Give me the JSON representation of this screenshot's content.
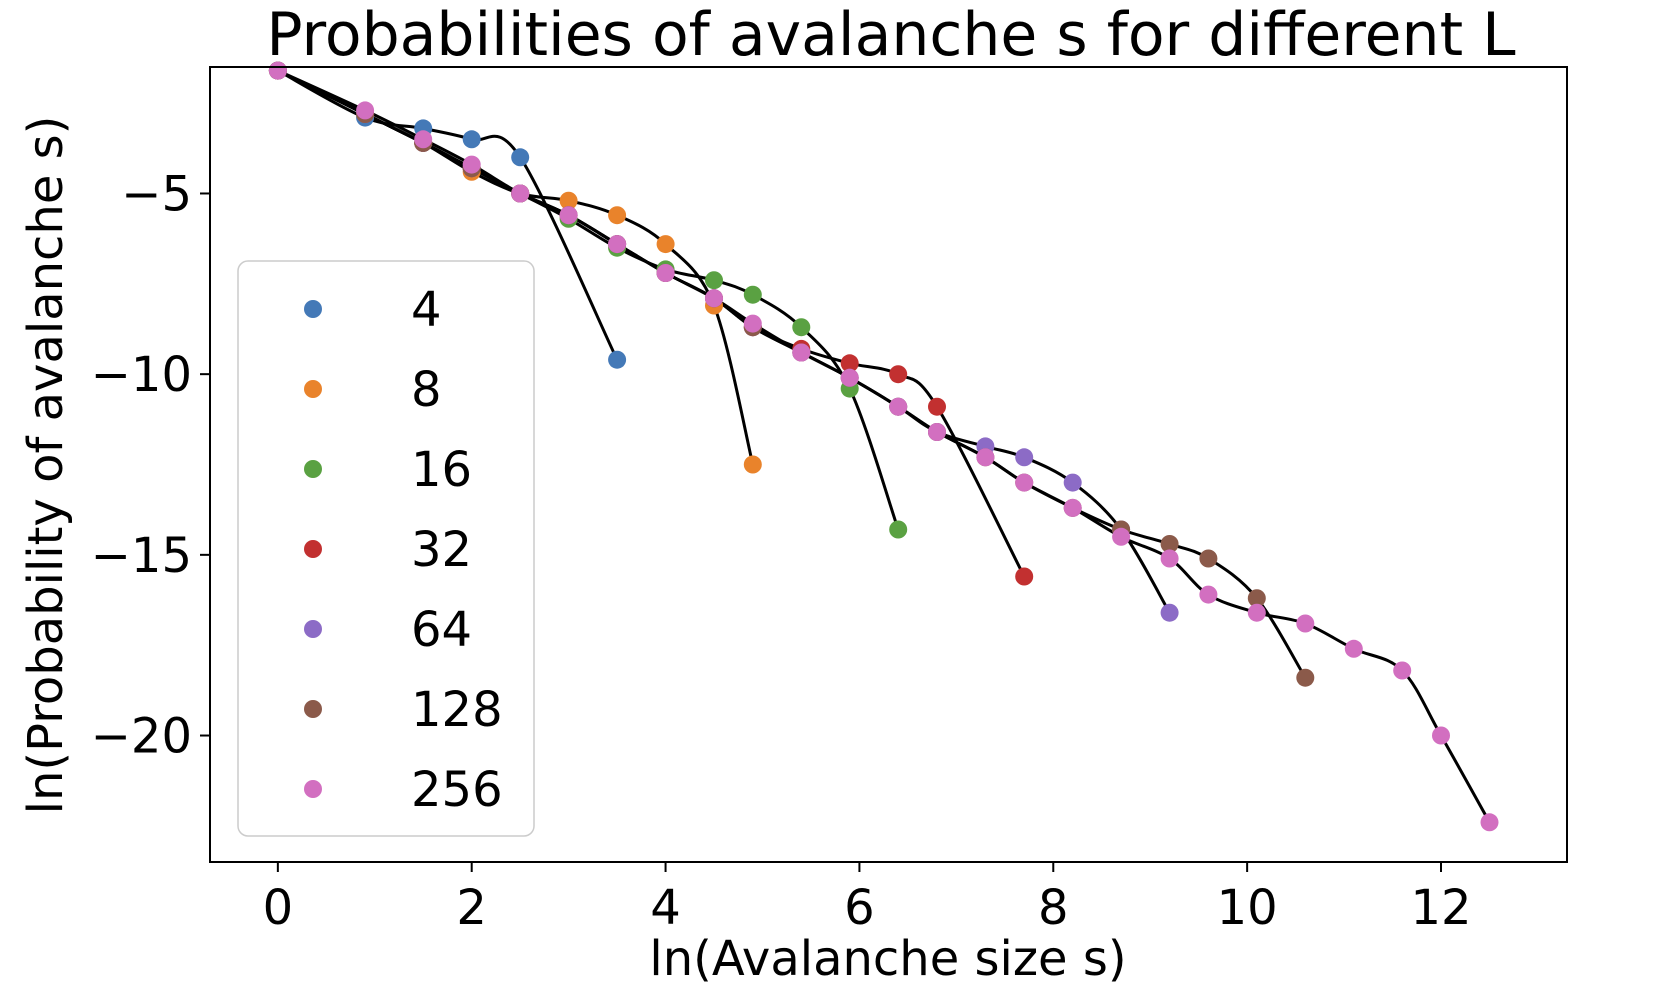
{
  "chart_data": {
    "type": "line",
    "title": "Probabilities of avalanche s for different L",
    "xlabel": "ln(Avalanche size s)",
    "ylabel": "ln(Probability of avalanche s)",
    "xlim": [
      -0.7,
      13.3
    ],
    "ylim": [
      -23.5,
      -1.5
    ],
    "xticks": [
      0,
      2,
      4,
      6,
      8,
      10,
      12
    ],
    "yticks": [
      -5,
      -10,
      -15,
      -20
    ],
    "xtick_labels": [
      "0",
      "2",
      "4",
      "6",
      "8",
      "10",
      "12"
    ],
    "ytick_labels": [
      "−5",
      "−10",
      "−15",
      "−20"
    ],
    "grid": false,
    "legend_position": "center-left",
    "line_color": "#000000",
    "series": [
      {
        "name": "4",
        "color": "#4479b7",
        "x": [
          0,
          0.9,
          1.5,
          2.0,
          2.5,
          3.5
        ],
        "y": [
          -1.6,
          -2.9,
          -3.2,
          -3.5,
          -4.0,
          -9.6
        ]
      },
      {
        "name": "8",
        "color": "#e9832b",
        "x": [
          0,
          0.9,
          1.5,
          2.0,
          2.5,
          3.0,
          3.5,
          4.0,
          4.5,
          4.9
        ],
        "y": [
          -1.6,
          -2.8,
          -3.6,
          -4.4,
          -5.0,
          -5.2,
          -5.6,
          -6.4,
          -8.1,
          -12.5
        ]
      },
      {
        "name": "16",
        "color": "#5aa142",
        "x": [
          0,
          0.9,
          1.5,
          2.0,
          2.5,
          3.0,
          3.5,
          4.0,
          4.5,
          4.9,
          5.4,
          5.9,
          6.4
        ],
        "y": [
          -1.6,
          -2.8,
          -3.6,
          -4.3,
          -5.0,
          -5.7,
          -6.5,
          -7.1,
          -7.4,
          -7.8,
          -8.7,
          -10.4,
          -14.3
        ]
      },
      {
        "name": "32",
        "color": "#c23030",
        "x": [
          0,
          0.9,
          1.5,
          2.0,
          2.5,
          3.0,
          3.5,
          4.0,
          4.5,
          4.9,
          5.4,
          5.9,
          6.4,
          6.8,
          7.7
        ],
        "y": [
          -1.6,
          -2.8,
          -3.6,
          -4.3,
          -5.0,
          -5.6,
          -6.4,
          -7.2,
          -7.9,
          -8.7,
          -9.3,
          -9.7,
          -10.0,
          -10.9,
          -15.6
        ]
      },
      {
        "name": "64",
        "color": "#8c6bc6",
        "x": [
          0,
          0.9,
          1.5,
          2.0,
          2.5,
          3.0,
          3.5,
          4.0,
          4.5,
          4.9,
          5.4,
          5.9,
          6.4,
          6.8,
          7.3,
          7.7,
          8.2,
          8.7,
          9.2
        ],
        "y": [
          -1.6,
          -2.8,
          -3.6,
          -4.3,
          -5.0,
          -5.6,
          -6.4,
          -7.2,
          -7.9,
          -8.7,
          -9.4,
          -10.1,
          -10.9,
          -11.6,
          -12.0,
          -12.3,
          -13.0,
          -14.3,
          -16.6
        ]
      },
      {
        "name": "128",
        "color": "#8b5a4a",
        "x": [
          0,
          0.9,
          1.5,
          2.0,
          2.5,
          3.0,
          3.5,
          4.0,
          4.5,
          4.9,
          5.4,
          5.9,
          6.4,
          6.8,
          7.3,
          7.7,
          8.2,
          8.7,
          9.2,
          9.6,
          10.1,
          10.6
        ],
        "y": [
          -1.6,
          -2.8,
          -3.6,
          -4.3,
          -5.0,
          -5.6,
          -6.4,
          -7.2,
          -7.9,
          -8.7,
          -9.4,
          -10.1,
          -10.9,
          -11.6,
          -12.3,
          -13.0,
          -13.7,
          -14.3,
          -14.7,
          -15.1,
          -16.2,
          -18.4
        ]
      },
      {
        "name": "256",
        "color": "#d26fc0",
        "x": [
          0,
          0.9,
          1.5,
          2.0,
          2.5,
          3.0,
          3.5,
          4.0,
          4.5,
          4.9,
          5.4,
          5.9,
          6.4,
          6.8,
          7.3,
          7.7,
          8.2,
          8.7,
          9.2,
          9.6,
          10.1,
          10.6,
          11.1,
          11.6,
          12.0,
          12.5
        ],
        "y": [
          -1.6,
          -2.7,
          -3.5,
          -4.2,
          -5.0,
          -5.6,
          -6.4,
          -7.2,
          -7.9,
          -8.6,
          -9.4,
          -10.1,
          -10.9,
          -11.6,
          -12.3,
          -13.0,
          -13.7,
          -14.5,
          -15.1,
          -16.1,
          -16.6,
          -16.9,
          -17.6,
          -18.2,
          -20.0,
          -22.4
        ]
      }
    ]
  }
}
